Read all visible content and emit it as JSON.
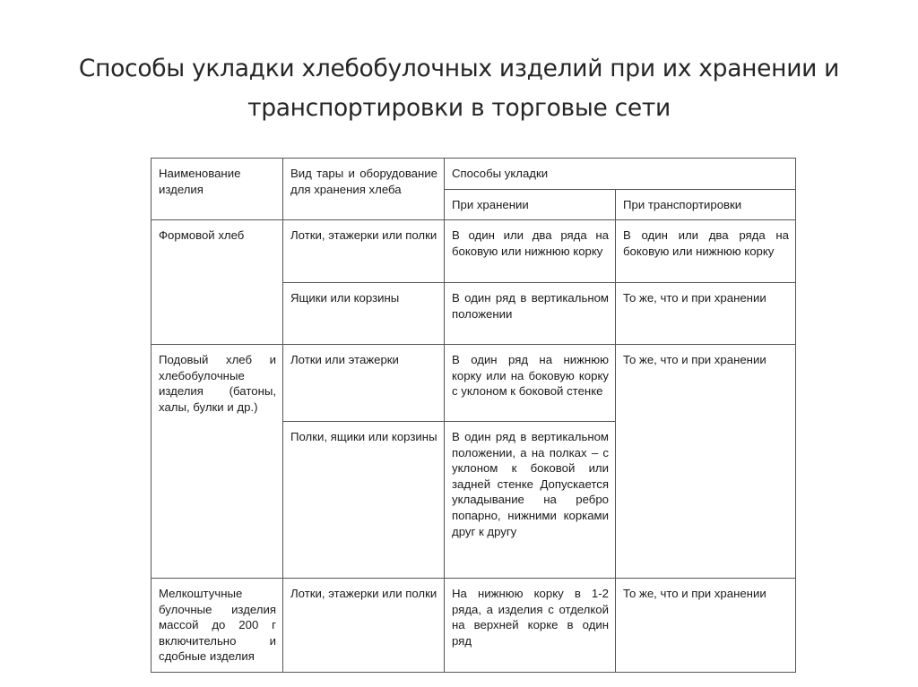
{
  "title": "Способы укладки хлебобулочных изделий при их хранении и транспортировки в торговые сети",
  "table": {
    "header": {
      "name": "Наименование изделия",
      "container": "Вид тары и оборудование для хранения хлеба",
      "methods": "Способы укладки",
      "storage": "При хранении",
      "transport": "При транспортировки"
    },
    "rows": [
      {
        "name": "Формовой хлеб",
        "sub": [
          {
            "container": "Лотки, этажерки или полки",
            "storage": "В один или два ряда на боковую или нижнюю корку",
            "transport": "В один или два ряда на боковую или нижнюю корку"
          },
          {
            "container": "Ящики или корзины",
            "storage": "В один ряд в вертикальном положении",
            "transport": "То же, что и при хранении"
          }
        ]
      },
      {
        "name": "Подовый хлеб и хлебобулочные изделия (батоны, халы, булки и др.)",
        "transport": "То же, что и при хранении",
        "sub": [
          {
            "container": "Лотки или этажерки",
            "storage": "В один ряд на нижнюю корку или на боковую корку с уклоном к боковой стенке"
          },
          {
            "container": "Полки, ящики или корзины",
            "storage": "В один ряд в вертикальном положении, а на полках – с уклоном к боковой или задней стенке Допускается укладывание на ребро попарно, нижними корками друг к другу"
          }
        ]
      },
      {
        "name": "Мелкоштучные булочные изделия массой до 200 г включительно и сдобные изделия",
        "sub": [
          {
            "container": "Лотки, этажерки или полки",
            "storage": "На нижнюю корку в 1-2 ряда, а изделия с отделкой на верхней корке в один ряд",
            "transport": "То же, что и при хранении"
          }
        ]
      }
    ]
  }
}
